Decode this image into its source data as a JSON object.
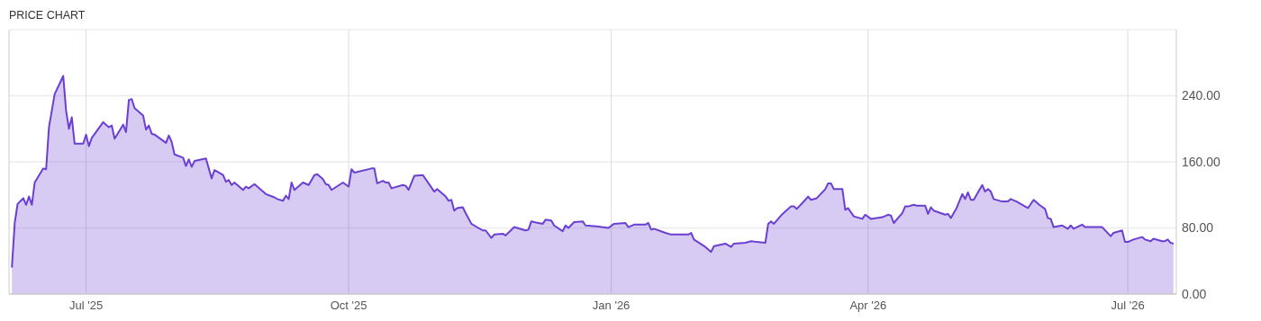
{
  "chart_data": {
    "type": "area",
    "title": "PRICE CHART",
    "xlim": [
      "2025-06-04",
      "2026-07-18"
    ],
    "xticks": [
      {
        "value": "2025-07-01",
        "label": "Jul '25"
      },
      {
        "value": "2025-10-01",
        "label": "Oct '25"
      },
      {
        "value": "2026-01-01",
        "label": "Jan '26"
      },
      {
        "value": "2026-04-01",
        "label": "Apr '26"
      },
      {
        "value": "2026-07-01",
        "label": "Jul '26"
      }
    ],
    "ylim": [
      0,
      320
    ],
    "yticks": [
      {
        "value": 0,
        "label": "0.00"
      },
      {
        "value": 80,
        "label": "80.00"
      },
      {
        "value": 160,
        "label": "160.00"
      },
      {
        "value": 240,
        "label": "240.00"
      }
    ],
    "grid": true,
    "x": [
      "2025-06-05",
      "2025-06-06",
      "2025-06-07",
      "2025-06-09",
      "2025-06-10",
      "2025-06-11",
      "2025-06-12",
      "2025-06-13",
      "2025-06-16",
      "2025-06-17",
      "2025-06-18",
      "2025-06-20",
      "2025-06-23",
      "2025-06-24",
      "2025-06-25",
      "2025-06-26",
      "2025-06-27",
      "2025-06-30",
      "2025-07-01",
      "2025-07-02",
      "2025-07-03",
      "2025-07-07",
      "2025-07-09",
      "2025-07-10",
      "2025-07-11",
      "2025-07-14",
      "2025-07-15",
      "2025-07-16",
      "2025-07-17",
      "2025-07-18",
      "2025-07-21",
      "2025-07-22",
      "2025-07-23",
      "2025-07-24",
      "2025-07-25",
      "2025-07-29",
      "2025-07-30",
      "2025-07-31",
      "2025-08-01",
      "2025-08-04",
      "2025-08-05",
      "2025-08-06",
      "2025-08-07",
      "2025-08-08",
      "2025-08-12",
      "2025-08-14",
      "2025-08-15",
      "2025-08-18",
      "2025-08-19",
      "2025-08-20",
      "2025-08-21",
      "2025-08-22",
      "2025-08-25",
      "2025-08-26",
      "2025-08-27",
      "2025-08-29",
      "2025-09-02",
      "2025-09-05",
      "2025-09-06",
      "2025-09-08",
      "2025-09-09",
      "2025-09-10",
      "2025-09-11",
      "2025-09-12",
      "2025-09-15",
      "2025-09-17",
      "2025-09-19",
      "2025-09-20",
      "2025-09-22",
      "2025-09-23",
      "2025-09-24",
      "2025-09-25",
      "2025-09-29",
      "2025-10-01",
      "2025-10-02",
      "2025-10-03",
      "2025-10-09",
      "2025-10-10",
      "2025-10-11",
      "2025-10-13",
      "2025-10-14",
      "2025-10-15",
      "2025-10-16",
      "2025-10-20",
      "2025-10-21",
      "2025-10-22",
      "2025-10-24",
      "2025-10-27",
      "2025-10-29",
      "2025-10-31",
      "2025-11-01",
      "2025-11-04",
      "2025-11-05",
      "2025-11-06",
      "2025-11-07",
      "2025-11-08",
      "2025-11-10",
      "2025-11-11",
      "2025-11-13",
      "2025-11-14",
      "2025-11-17",
      "2025-11-18",
      "2025-11-20",
      "2025-11-21",
      "2025-11-24",
      "2025-11-25",
      "2025-11-28",
      "2025-12-02",
      "2025-12-03",
      "2025-12-04",
      "2025-12-05",
      "2025-12-08",
      "2025-12-09",
      "2025-12-11",
      "2025-12-12",
      "2025-12-15",
      "2025-12-16",
      "2025-12-17",
      "2025-12-19",
      "2025-12-22",
      "2025-12-23",
      "2025-12-27",
      "2025-12-31",
      "2026-01-02",
      "2026-01-06",
      "2026-01-07",
      "2026-01-09",
      "2026-01-13",
      "2026-01-14",
      "2026-01-15",
      "2026-01-16",
      "2026-01-20",
      "2026-01-22",
      "2026-01-28",
      "2026-01-29",
      "2026-01-30",
      "2026-02-03",
      "2026-02-05",
      "2026-02-06",
      "2026-02-10",
      "2026-02-12",
      "2026-02-13",
      "2026-02-17",
      "2026-02-19",
      "2026-02-21",
      "2026-02-24",
      "2026-02-25",
      "2026-02-26",
      "2026-02-27",
      "2026-03-02",
      "2026-03-05",
      "2026-03-06",
      "2026-03-07",
      "2026-03-10",
      "2026-03-11",
      "2026-03-12",
      "2026-03-14",
      "2026-03-17",
      "2026-03-18",
      "2026-03-19",
      "2026-03-20",
      "2026-03-23",
      "2026-03-24",
      "2026-03-25",
      "2026-03-27",
      "2026-03-30",
      "2026-03-31",
      "2026-04-02",
      "2026-04-06",
      "2026-04-08",
      "2026-04-09",
      "2026-04-10",
      "2026-04-13",
      "2026-04-14",
      "2026-04-15",
      "2026-04-17",
      "2026-04-18",
      "2026-04-21",
      "2026-04-22",
      "2026-04-23",
      "2026-04-24",
      "2026-04-28",
      "2026-04-29",
      "2026-04-30",
      "2026-05-02",
      "2026-05-04",
      "2026-05-05",
      "2026-05-06",
      "2026-05-07",
      "2026-05-08",
      "2026-05-11",
      "2026-05-12",
      "2026-05-13",
      "2026-05-14",
      "2026-05-15",
      "2026-05-18",
      "2026-05-20",
      "2026-05-21",
      "2026-05-23",
      "2026-05-27",
      "2026-05-29",
      "2026-05-31",
      "2026-06-02",
      "2026-06-03",
      "2026-06-04",
      "2026-06-05",
      "2026-06-08",
      "2026-06-09",
      "2026-06-10",
      "2026-06-11",
      "2026-06-12",
      "2026-06-15",
      "2026-06-16",
      "2026-06-22",
      "2026-06-25",
      "2026-06-26",
      "2026-06-29",
      "2026-06-30",
      "2026-07-01",
      "2026-07-03",
      "2026-07-06",
      "2026-07-07",
      "2026-07-09",
      "2026-07-10",
      "2026-07-13",
      "2026-07-14",
      "2026-07-15",
      "2026-07-16",
      "2026-07-17"
    ],
    "series": [
      {
        "color": "#6a3fd2",
        "values": [
          32,
          86,
          109,
          116,
          108,
          118,
          108,
          135,
          152,
          151,
          202,
          242,
          264,
          222,
          200,
          214,
          182,
          182,
          193,
          179,
          189,
          208,
          202,
          204,
          188,
          205,
          196,
          235,
          236,
          225,
          216,
          199,
          204,
          194,
          193,
          183,
          192,
          184,
          169,
          165,
          155,
          163,
          154,
          161,
          164,
          140,
          150,
          144,
          136,
          138,
          132,
          135,
          126,
          130,
          128,
          133,
          121,
          117,
          115,
          113,
          119,
          115,
          135,
          126,
          135,
          132,
          144,
          145,
          139,
          133,
          132,
          126,
          135,
          130,
          151,
          147,
          152,
          152,
          134,
          137,
          135,
          135,
          128,
          132,
          131,
          126,
          143,
          144,
          134,
          124,
          127,
          118,
          113,
          114,
          101,
          104,
          105,
          98,
          85,
          83,
          77,
          77,
          68,
          72,
          73,
          71,
          81,
          77,
          78,
          88,
          87,
          85,
          90,
          89,
          83,
          76,
          83,
          80,
          87,
          88,
          83,
          82,
          80,
          85,
          86,
          81,
          84,
          84,
          86,
          78,
          79,
          74,
          72,
          72,
          74,
          66,
          57,
          51,
          58,
          61,
          57,
          61,
          62,
          64,
          63,
          62,
          85,
          88,
          85,
          97,
          106,
          106,
          103,
          114,
          118,
          114,
          116,
          127,
          134,
          134,
          127,
          127,
          102,
          104,
          94,
          91,
          96,
          91,
          93,
          96,
          95,
          86,
          98,
          106,
          106,
          108,
          107,
          107,
          97,
          105,
          101,
          96,
          97,
          92,
          104,
          121,
          115,
          123,
          114,
          114,
          132,
          124,
          127,
          124,
          115,
          112,
          112,
          115,
          112,
          104,
          114,
          108,
          103,
          92,
          91,
          81,
          83,
          81,
          79,
          83,
          79,
          84,
          81,
          81,
          70,
          74,
          77,
          63,
          63,
          66,
          69,
          66,
          64,
          67,
          64,
          64,
          66,
          62,
          61
        ]
      }
    ]
  }
}
